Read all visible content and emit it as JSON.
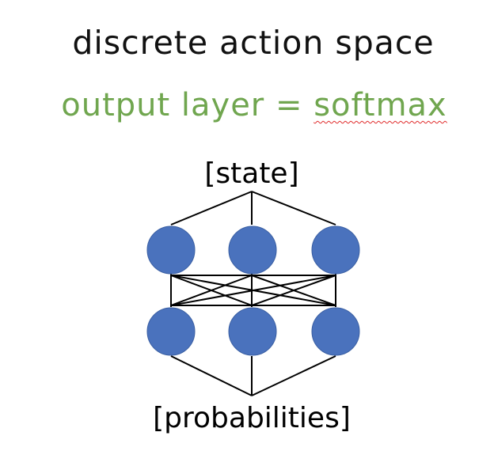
{
  "title": "discrete action space",
  "subtitle": {
    "prefix": "output layer = ",
    "emphasis": "softmax"
  },
  "network": {
    "input_label": "[state]",
    "output_label": "[probabilities]",
    "layers": 2,
    "nodes_per_layer": 3,
    "node_color": "#4a72bd"
  },
  "colors": {
    "title": "#111111",
    "subtitle": "#70a64f",
    "spellcheck_underline": "#e02a2a"
  }
}
